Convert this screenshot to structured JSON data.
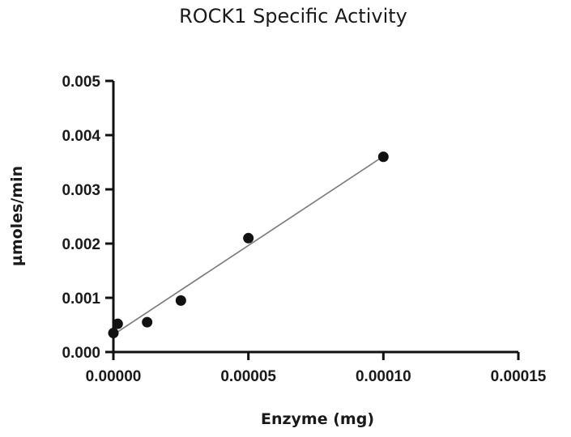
{
  "chart_data": {
    "type": "scatter",
    "title": "ROCK1 Specific Activity",
    "xlabel": "Enzyme (mg)",
    "ylabel": "µmoles/min",
    "xlim": [
      0,
      0.00015
    ],
    "ylim": [
      0,
      0.005
    ],
    "x_ticks": [
      "0.00000",
      "0.00005",
      "0.00010",
      "0.00015"
    ],
    "y_ticks": [
      "0.000",
      "0.001",
      "0.002",
      "0.003",
      "0.004",
      "0.005"
    ],
    "grid": false,
    "series": [
      {
        "points": [
          {
            "x": 0.0,
            "y": 0.00035
          },
          {
            "x": 1.6e-06,
            "y": 0.00052
          },
          {
            "x": 1.25e-05,
            "y": 0.00055
          },
          {
            "x": 2.5e-05,
            "y": 0.00095
          },
          {
            "x": 5e-05,
            "y": 0.0021
          },
          {
            "x": 0.0001,
            "y": 0.0036
          }
        ]
      }
    ],
    "fit_line": {
      "x": [
        0,
        0.0001
      ],
      "y": [
        0.00032,
        0.00361
      ]
    },
    "colors": {
      "marker": "#111111",
      "fit_line": "#777777",
      "axis": "#111111"
    }
  }
}
